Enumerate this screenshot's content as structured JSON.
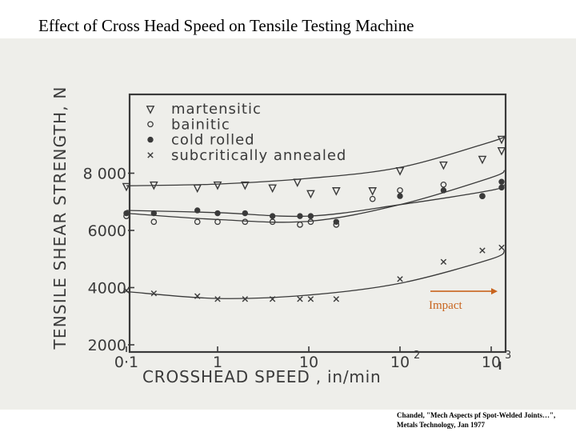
{
  "slide": {
    "title": "Effect of Cross Head Speed on Tensile Testing Machine",
    "source_line1": "Chandel, \"Mech Aspects pf Spot-Welded Joints…\",",
    "source_line2": "Metals Technology, Jan 1977"
  },
  "colors": {
    "annotation": "#c8641e",
    "ink": "#3a3a3a",
    "scan_background": "#eeeeea"
  },
  "chart_data": {
    "type": "scatter",
    "xscale": "log",
    "xlim": [
      0.1,
      1000
    ],
    "ylim": [
      2000,
      10000
    ],
    "xlabel": "CROSSHEAD SPEED , in/min",
    "ylabel": "TENSILE SHEAR STRENGTH, N",
    "x_ticks": [
      {
        "value": 0.1,
        "label": "0·1"
      },
      {
        "value": 1,
        "label": "1"
      },
      {
        "value": 10,
        "label": "10"
      },
      {
        "value": 100,
        "label": "10",
        "exp": "2"
      },
      {
        "value": 1000,
        "label": "10",
        "exp": "3"
      }
    ],
    "y_ticks": [
      {
        "value": 2000,
        "label": "2000"
      },
      {
        "value": 4000,
        "label": "4000"
      },
      {
        "value": 6000,
        "label": "6000"
      },
      {
        "value": 8000,
        "label": "8 000"
      }
    ],
    "legend_position": "top-left",
    "grid": false,
    "annotation": {
      "text": "Impact",
      "arrow_from": 100,
      "arrow_to": 1000,
      "y": 3900
    },
    "series": [
      {
        "name": "martensitic",
        "marker": "triangle-down",
        "x": [
          0.1,
          0.2,
          0.6,
          1.0,
          2.0,
          4.0,
          7.5,
          10.5,
          20,
          50,
          100,
          300,
          800,
          1300,
          1300
        ],
        "y": [
          7550,
          7600,
          7500,
          7600,
          7600,
          7500,
          7700,
          7300,
          7400,
          7400,
          8100,
          8300,
          8500,
          9200,
          8800
        ],
        "curve": [
          [
            0.1,
            7560
          ],
          [
            1,
            7620
          ],
          [
            10,
            7820
          ],
          [
            100,
            8200
          ],
          [
            1000,
            9100
          ],
          [
            1400,
            9300
          ]
        ]
      },
      {
        "name": "bainitic",
        "marker": "circle-open",
        "x": [
          0.1,
          0.2,
          0.6,
          1.0,
          2.0,
          4.0,
          8.0,
          10.5,
          20,
          50,
          100,
          300,
          800
        ],
        "y": [
          6500,
          6300,
          6300,
          6300,
          6300,
          6300,
          6200,
          6300,
          6200,
          7100,
          7400,
          7600,
          7200
        ],
        "curve": [
          [
            0.1,
            6600
          ],
          [
            1,
            6380
          ],
          [
            10,
            6320
          ],
          [
            100,
            6900
          ],
          [
            1000,
            7850
          ],
          [
            1400,
            8100
          ]
        ]
      },
      {
        "name": "cold rolled",
        "marker": "circle-filled",
        "x": [
          0.1,
          0.2,
          0.6,
          1.0,
          2.0,
          4.0,
          8.0,
          10.5,
          20,
          100,
          300,
          800,
          1300,
          1300
        ],
        "y": [
          6600,
          6600,
          6700,
          6600,
          6600,
          6500,
          6500,
          6500,
          6300,
          7200,
          7400,
          7200,
          7700,
          7500
        ],
        "curve": [
          [
            0.1,
            6700
          ],
          [
            1,
            6620
          ],
          [
            10,
            6500
          ],
          [
            100,
            6900
          ],
          [
            1000,
            7400
          ],
          [
            1400,
            7600
          ]
        ]
      },
      {
        "name": "subcritically annealed",
        "marker": "cross",
        "x": [
          0.1,
          0.2,
          0.6,
          1.0,
          2.0,
          4.0,
          8.0,
          10.5,
          20,
          100,
          300,
          800,
          1300
        ],
        "y": [
          3900,
          3800,
          3700,
          3600,
          3600,
          3600,
          3600,
          3600,
          3600,
          4300,
          4900,
          5300,
          5400
        ],
        "curve": [
          [
            0.1,
            3860
          ],
          [
            1,
            3620
          ],
          [
            10,
            3740
          ],
          [
            100,
            4150
          ],
          [
            1000,
            5000
          ],
          [
            1400,
            5300
          ]
        ]
      }
    ]
  }
}
